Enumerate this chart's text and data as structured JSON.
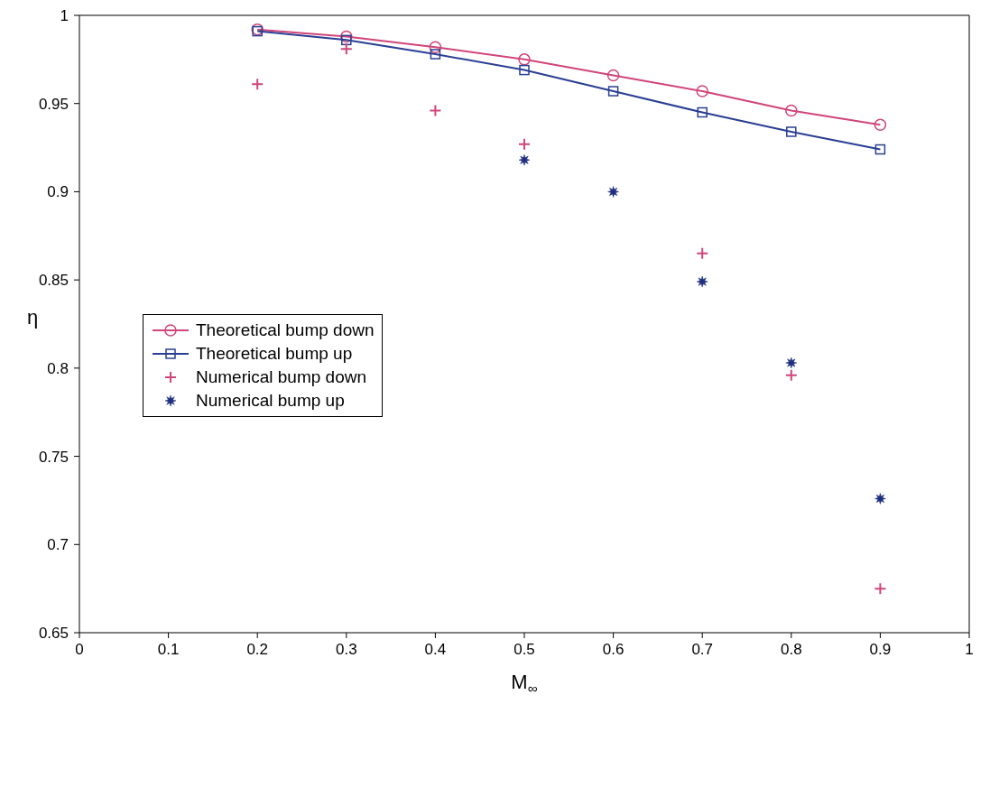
{
  "chart_data": {
    "type": "scatter",
    "xlabel": "M$_{∞}$",
    "ylabel": "η",
    "x": [
      0.2,
      0.3,
      0.4,
      0.5,
      0.6,
      0.7,
      0.8,
      0.9
    ],
    "xlim": [
      0,
      1
    ],
    "xticks": [
      0,
      0.1,
      0.2,
      0.3,
      0.4,
      0.5,
      0.6,
      0.7,
      0.8,
      0.9,
      1
    ],
    "ylim": [
      0.65,
      1
    ],
    "yticks": [
      0.65,
      0.7,
      0.75,
      0.8,
      0.85,
      0.9,
      0.95,
      1
    ],
    "grid": false,
    "legend": "left",
    "series": [
      {
        "name": "Theoretical bump down",
        "type": "line",
        "marker": "circle",
        "line_style": "solid",
        "color": "#d0457a",
        "values": [
          0.992,
          0.988,
          0.982,
          0.975,
          0.966,
          0.957,
          0.946,
          0.938
        ]
      },
      {
        "name": "Theoretical bump up",
        "type": "line",
        "marker": "square",
        "line_style": "solid",
        "color": "#2a3f93",
        "values": [
          0.991,
          0.986,
          0.978,
          0.969,
          0.957,
          0.945,
          0.934,
          0.924
        ]
      },
      {
        "name": "Numerical bump down",
        "type": "scatter",
        "marker": "cross",
        "color": "#d0457a",
        "values": [
          0.961,
          0.981,
          0.946,
          0.927,
          null,
          0.865,
          0.796,
          0.675
        ]
      },
      {
        "name": "Numerical bump up",
        "type": "scatter",
        "marker": "star",
        "color": "#1f2f80",
        "values": [
          null,
          null,
          null,
          0.918,
          0.9,
          0.849,
          0.803,
          0.726
        ]
      }
    ]
  }
}
